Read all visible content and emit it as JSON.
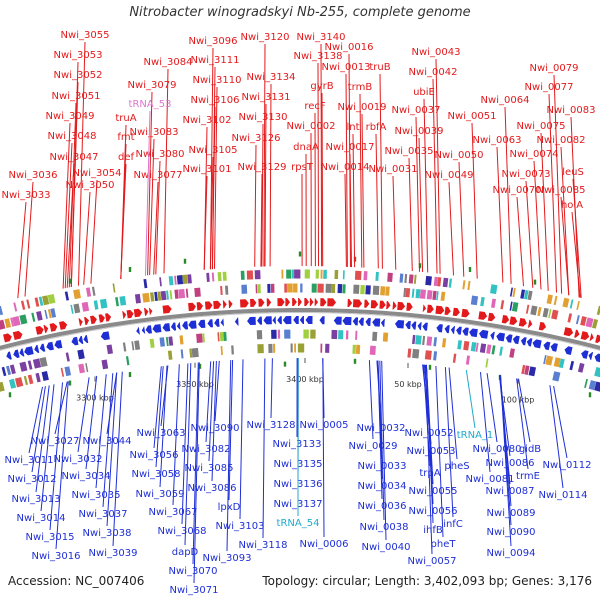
{
  "title": "Nitrobacter winogradskyi Nb-255, complete genome",
  "accession_line": "Accession: NC_007406",
  "summary_line": "Topology: circular; Length: 3,402,093 bp; Genes: 3,176",
  "colors": {
    "forward": "#e31a1c",
    "reverse": "#1f2fd6",
    "rna": "#dd77cc",
    "trna_rev": "#22aacc",
    "backbone": "#8a8a8a",
    "marker": "#2a8a2a"
  },
  "scale_labels": [
    "3300 kbp",
    "3350 kbp",
    "3400 kbp",
    "50 kbp",
    "100 kbp"
  ],
  "forward_labels": [
    "Nwi_3055",
    "Nwi_3053",
    "Nwi_3052",
    "Nwi_3051",
    "Nwi_3049",
    "Nwi_3048",
    "Nwi_3047",
    "Nwi_3036",
    "Nwi_3033",
    "Nwi_3050",
    "Nwi_3054",
    "def",
    "fmt",
    "truA",
    "Nwi_3083",
    "Nwi_3079",
    "Nwi_3084",
    "Nwi_3080",
    "Nwi_3077",
    "tRNA_53",
    "Nwi_3096",
    "Nwi_3111",
    "Nwi_3110",
    "Nwi_3106",
    "Nwi_3102",
    "Nwi_3105",
    "Nwi_3101",
    "Nwi_3120",
    "Nwi_3134",
    "Nwi_3131",
    "Nwi_3130",
    "Nwi_3126",
    "Nwi_3129",
    "Nwi_3140",
    "Nwi_3138",
    "Nwi_0002",
    "dnaA",
    "rpsT",
    "recF",
    "gyrB",
    "Nwi_0016",
    "Nwi_0013",
    "truB",
    "trmB",
    "Nwi_0019",
    "lnt",
    "rbfA",
    "Nwi_0017",
    "Nwi_0014",
    "Nwi_0043",
    "Nwi_0042",
    "ubiE",
    "Nwi_0037",
    "Nwi_0039",
    "Nwi_0035",
    "Nwi_0031",
    "Nwi_0051",
    "Nwi_0050",
    "Nwi_0049",
    "Nwi_0064",
    "Nwi_0063",
    "Nwi_0079",
    "Nwi_0077",
    "Nwi_0083",
    "Nwi_0075",
    "Nwi_0082",
    "Nwi_0074",
    "Nwi_0073",
    "Nwi_0070",
    "leuS",
    "Nwi_0085",
    "holA"
  ],
  "reverse_labels": [
    "Nwi_3027",
    "Nwi_3044",
    "Nwi_3011",
    "Nwi_3032",
    "Nwi_3034",
    "Nwi_3012",
    "Nwi_3013",
    "Nwi_3035",
    "Nwi_3037",
    "Nwi_3014",
    "Nwi_3038",
    "Nwi_3015",
    "Nwi_3039",
    "Nwi_3016",
    "Nwi_3063",
    "Nwi_3056",
    "Nwi_3058",
    "Nwi_3059",
    "Nwi_3067",
    "Nwi_3068",
    "dapD",
    "Nwi_3070",
    "Nwi_3071",
    "Nwi_3090",
    "Nwi_3082",
    "Nwi_3085",
    "Nwi_3086",
    "lpxD",
    "Nwi_3093",
    "Nwi_3103",
    "Nwi_3118",
    "Nwi_3128",
    "Nwi_3133",
    "Nwi_3135",
    "Nwi_3136",
    "Nwi_3137",
    "tRNA_54",
    "Nwi_0005",
    "Nwi_0006",
    "Nwi_0032",
    "Nwi_0029",
    "Nwi_0033",
    "Nwi_0034",
    "Nwi_0036",
    "Nwi_0038",
    "Nwi_0040",
    "Nwi_0052",
    "tRNA_1",
    "Nwi_0053",
    "pheS",
    "trpA",
    "Nwi_0055",
    "ihfB",
    "Nwi_0056",
    "infC",
    "pheT",
    "Nwi_0057",
    "Nwi_0080",
    "gidB",
    "Nwi_0086",
    "Nwi_0081",
    "trmE",
    "Nwi_0087",
    "Nwi_0089",
    "Nwi_0090",
    "Nwi_0094",
    "Nwi_0112",
    "Nwi_0114"
  ]
}
